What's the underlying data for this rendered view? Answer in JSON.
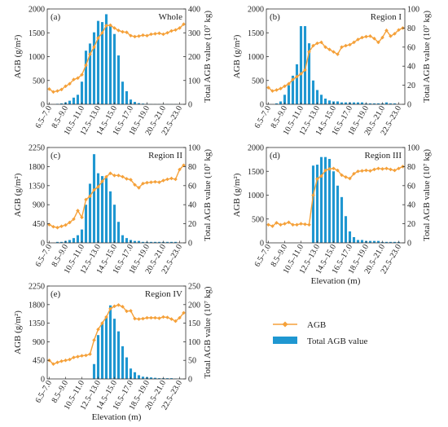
{
  "colors": {
    "bar": "#1f97d1",
    "line": "#f5a13a"
  },
  "legend": {
    "line_label": "AGB",
    "bar_label": "Total AGB value"
  },
  "chart_data": [
    {
      "type": "bar+line",
      "panel": "(a)",
      "title": "Whole",
      "ylabel_left": "AGB (g/m²)",
      "ylabel_right": "Total AGB value (10⁷ kg)",
      "xlabel": "",
      "ylim_left": [
        0,
        2000
      ],
      "yticks_left": [
        "0",
        "500",
        "1000",
        "1500",
        "2000"
      ],
      "ylim_right": [
        0,
        400
      ],
      "yticks_right": [
        "0",
        "100",
        "200",
        "300",
        "400"
      ],
      "x_tick_labels": [
        "6.5–7.0",
        "8.5–9.0",
        "10.5–11.0",
        "12.5–13.0",
        "14.5–15.0",
        "16.5–17.0",
        "18.5–19.0",
        "20.5–21.0",
        "22.5–23.0"
      ],
      "bars": [
        0,
        0,
        2,
        4,
        8,
        15,
        28,
        40,
        95,
        225,
        255,
        302,
        350,
        345,
        378,
        330,
        295,
        205,
        95,
        55,
        20,
        10,
        5,
        3,
        2,
        1,
        1,
        1,
        1,
        1,
        1,
        1,
        0,
        0
      ],
      "agb": [
        320,
        260,
        280,
        310,
        380,
        430,
        520,
        550,
        620,
        820,
        1050,
        1200,
        1390,
        1500,
        1650,
        1660,
        1600,
        1550,
        1520,
        1510,
        1440,
        1420,
        1430,
        1450,
        1440,
        1470,
        1480,
        1490,
        1470,
        1500,
        1540,
        1560,
        1600,
        1680
      ]
    },
    {
      "type": "bar+line",
      "panel": "(b)",
      "title": "Region I",
      "ylabel_left": "AGB (g/m²)",
      "ylabel_right": "Total AGB value (10⁷ kg)",
      "xlabel": "",
      "ylim_left": [
        0,
        2000
      ],
      "yticks_left": [
        "0",
        "500",
        "1000",
        "1500",
        "2000"
      ],
      "ylim_right": [
        0,
        100
      ],
      "yticks_right": [
        "0",
        "20",
        "40",
        "60",
        "80",
        "100"
      ],
      "x_tick_labels": [
        "6.5–7.0",
        "8.5–9.0",
        "10.5–11.0",
        "12.5–13.0",
        "14.5–15.0",
        "16.5–17.0",
        "18.5–19.0",
        "20.5–21.0",
        "22.5–23.0"
      ],
      "bars": [
        0,
        0,
        1,
        3,
        10,
        20,
        30,
        42,
        82,
        82,
        64,
        25,
        15,
        10,
        6,
        4,
        3,
        3,
        2,
        2,
        2,
        2,
        2,
        2,
        1,
        1,
        1,
        1,
        1,
        2,
        1,
        1,
        0,
        0
      ],
      "agb": [
        350,
        280,
        300,
        330,
        380,
        430,
        520,
        580,
        640,
        720,
        1100,
        1230,
        1280,
        1300,
        1200,
        1150,
        1100,
        1050,
        1200,
        1230,
        1250,
        1300,
        1360,
        1400,
        1420,
        1430,
        1380,
        1300,
        1400,
        1550,
        1430,
        1480,
        1560,
        1600
      ]
    },
    {
      "type": "bar+line",
      "panel": "(c)",
      "title": "Region II",
      "ylabel_left": "AGB (g/m²)",
      "ylabel_right": "Total AGB value (10⁷ kg)",
      "xlabel": "",
      "ylim_left": [
        0,
        2250
      ],
      "yticks_left": [
        "0",
        "450",
        "900",
        "1350",
        "1800",
        "2250"
      ],
      "ylim_right": [
        0,
        100
      ],
      "yticks_right": [
        "0",
        "20",
        "40",
        "60",
        "80",
        "100"
      ],
      "x_tick_labels": [
        "6.5–7.0",
        "8.5–9.0",
        "10.5–11.0",
        "12.5–13.0",
        "14.5–15.0",
        "16.5–17.0",
        "18.5–19.0",
        "20.5–21.0",
        "22.5–23.0"
      ],
      "bars": [
        0,
        0,
        1,
        1,
        2,
        3,
        5,
        8,
        14,
        40,
        62,
        93,
        73,
        70,
        68,
        54,
        40,
        22,
        8,
        5,
        3,
        2,
        2,
        1,
        1,
        1,
        1,
        1,
        1,
        1,
        1,
        1,
        0,
        0
      ],
      "agb": [
        430,
        380,
        360,
        390,
        420,
        480,
        560,
        760,
        600,
        1020,
        1100,
        1250,
        1320,
        1450,
        1560,
        1640,
        1590,
        1590,
        1560,
        1510,
        1490,
        1370,
        1300,
        1400,
        1420,
        1430,
        1440,
        1430,
        1470,
        1500,
        1520,
        1500,
        1730,
        1830
      ]
    },
    {
      "type": "bar+line",
      "panel": "(d)",
      "title": "Region III",
      "ylabel_left": "AGB (g/m²)",
      "ylabel_right": "Total AGB value (10⁷ kg)",
      "xlabel": "Elevation (m)",
      "ylim_left": [
        0,
        2000
      ],
      "yticks_left": [
        "0",
        "500",
        "1000",
        "1500",
        "2000"
      ],
      "ylim_right": [
        0,
        100
      ],
      "yticks_right": [
        "0",
        "20",
        "40",
        "60",
        "80",
        "100"
      ],
      "x_tick_labels": [
        "6.5–7.0",
        "8.5–9.0",
        "10.5–11.0",
        "12.5–13.0",
        "14.5–15.0",
        "16.5–17.0",
        "18.5–19.0",
        "20.5–21.0",
        "22.5–23.0"
      ],
      "bars": [
        0,
        0,
        0,
        0,
        0,
        0,
        0,
        0,
        0,
        0,
        0,
        81,
        82,
        90,
        90,
        88,
        75,
        60,
        48,
        28,
        12,
        6,
        3,
        3,
        2,
        2,
        2,
        2,
        1,
        1,
        1,
        1,
        1,
        0
      ],
      "agb": [
        380,
        350,
        420,
        380,
        400,
        430,
        380,
        380,
        400,
        390,
        380,
        1000,
        1340,
        1400,
        1520,
        1550,
        1560,
        1520,
        1420,
        1380,
        1350,
        1450,
        1500,
        1510,
        1520,
        1510,
        1540,
        1560,
        1550,
        1560,
        1540,
        1520,
        1560,
        1600
      ]
    },
    {
      "type": "bar+line",
      "panel": "(e)",
      "title": "Region IV",
      "ylabel_left": "AGB (g/m²)",
      "ylabel_right": "Total AGB value (10⁷ kg)",
      "xlabel": "Elevation (m)",
      "ylim_left": [
        0,
        2250
      ],
      "yticks_left": [
        "0",
        "450",
        "900",
        "1350",
        "1800",
        "2250"
      ],
      "ylim_right": [
        0,
        250
      ],
      "yticks_right": [
        "0",
        "50",
        "100",
        "150",
        "200",
        "250"
      ],
      "x_tick_labels": [
        "6.5–7.0",
        "8.5–9.0",
        "10.5–11.0",
        "12.5–13.0",
        "14.5–15.0",
        "16.5–17.0",
        "18.5–19.0",
        "20.5–21.0",
        "22.5–23.0"
      ],
      "bars": [
        0,
        0,
        0,
        0,
        0,
        0,
        0,
        0,
        0,
        0,
        0,
        40,
        118,
        152,
        168,
        198,
        162,
        128,
        88,
        58,
        28,
        18,
        10,
        6,
        5,
        4,
        3,
        2,
        2,
        2,
        2,
        1,
        1,
        0
      ],
      "agb": [
        450,
        360,
        400,
        430,
        450,
        470,
        520,
        540,
        560,
        570,
        600,
        940,
        1200,
        1350,
        1500,
        1700,
        1760,
        1790,
        1750,
        1640,
        1650,
        1460,
        1450,
        1460,
        1480,
        1480,
        1480,
        1470,
        1500,
        1490,
        1450,
        1400,
        1480,
        1600
      ]
    }
  ]
}
